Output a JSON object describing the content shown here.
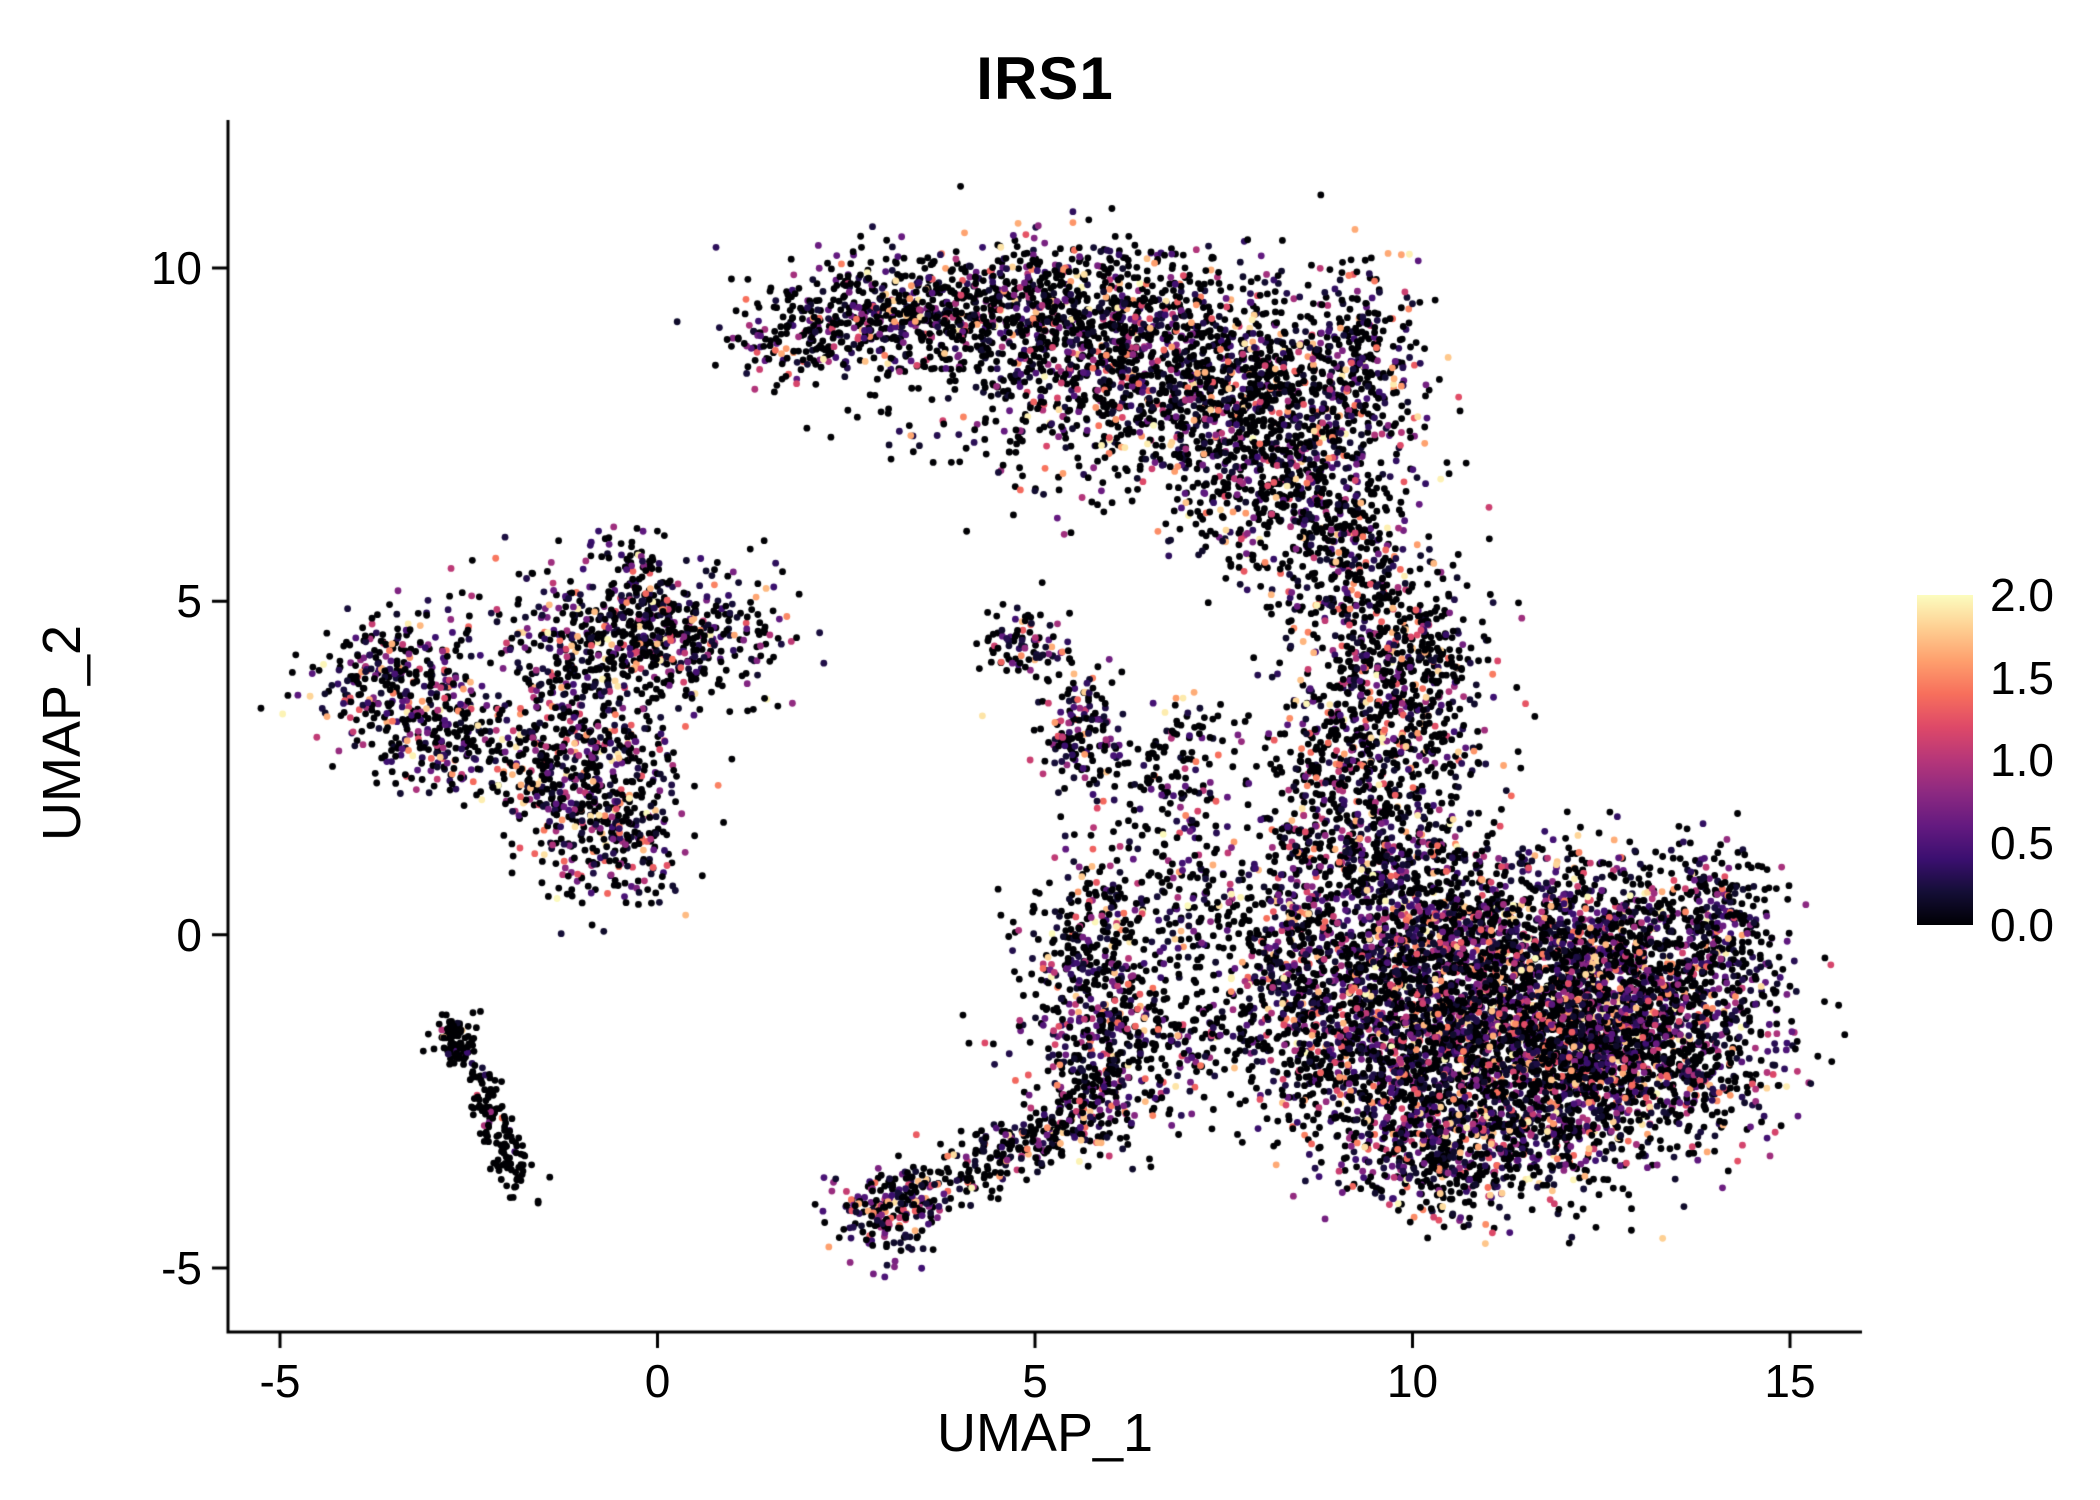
{
  "chart_data": {
    "type": "scatter",
    "title": "IRS1",
    "xlabel": "UMAP_1",
    "ylabel": "UMAP_2",
    "xlim": [
      -6.3,
      16.2
    ],
    "ylim": [
      -6.0,
      11.6
    ],
    "grid": false,
    "legend_position": "right",
    "x_ticks": {
      "values": [
        -5,
        0,
        5,
        10,
        15
      ],
      "labels": [
        "-5",
        "0",
        "5",
        "10",
        "15"
      ]
    },
    "y_ticks": {
      "values": [
        -5,
        0,
        5,
        10
      ],
      "labels": [
        "-5",
        "0",
        "5",
        "10"
      ]
    },
    "colorbar": {
      "min": 0,
      "max": 2,
      "tick_values": [
        0,
        0.5,
        1,
        1.5,
        2
      ],
      "tick_labels": [
        "0.0",
        "0.5",
        "1.0",
        "1.5",
        "2.0"
      ],
      "colormap": "magma",
      "stops": [
        "#000004",
        "#140E36",
        "#3B0F70",
        "#641A80",
        "#8C2981",
        "#B63679",
        "#DE4968",
        "#F76F5C",
        "#FE9F6D",
        "#FECF92",
        "#FCFDBF"
      ]
    },
    "point": {
      "radius": 3.4,
      "zero_color": "#000004"
    },
    "seed": 42,
    "expression": {
      "zero_value": 0,
      "nonzero_base": 0.15,
      "nonzero_range": 1.85,
      "power": 2.2
    },
    "clusters": [
      {
        "name": "top-crescent-left-tip",
        "kind": "gauss",
        "cx": 1.9,
        "cy": 8.95,
        "sx": 0.5,
        "sy": 0.4,
        "n": 150,
        "p0": 0.62
      },
      {
        "name": "top-crescent-1",
        "kind": "gauss",
        "cx": 3.3,
        "cy": 9.35,
        "sx": 0.85,
        "sy": 0.48,
        "n": 480,
        "p0": 0.62
      },
      {
        "name": "top-crescent-2",
        "kind": "gauss",
        "cx": 5.4,
        "cy": 9.2,
        "sx": 1.15,
        "sy": 0.62,
        "n": 850,
        "p0": 0.62
      },
      {
        "name": "top-crescent-3",
        "kind": "gauss",
        "cx": 7.2,
        "cy": 8.35,
        "sx": 1.0,
        "sy": 0.85,
        "n": 850,
        "p0": 0.6
      },
      {
        "name": "top-crescent-4",
        "kind": "gauss",
        "cx": 8.35,
        "cy": 7.0,
        "sx": 0.75,
        "sy": 0.85,
        "n": 650,
        "p0": 0.6
      },
      {
        "name": "top-crescent-right-edge",
        "kind": "gauss",
        "cx": 9.3,
        "cy": 8.6,
        "sx": 0.45,
        "sy": 0.75,
        "n": 280,
        "p0": 0.62
      },
      {
        "name": "top-crescent-inner",
        "kind": "gauss",
        "cx": 5.2,
        "cy": 7.7,
        "sx": 1.3,
        "sy": 0.75,
        "n": 160,
        "p0": 0.65
      },
      {
        "name": "neck-upper",
        "kind": "gauss",
        "cx": 9.0,
        "cy": 5.9,
        "sx": 0.45,
        "sy": 0.55,
        "n": 130,
        "p0": 0.6
      },
      {
        "name": "neck-mid",
        "kind": "gauss",
        "cx": 9.55,
        "cy": 4.6,
        "sx": 0.55,
        "sy": 0.75,
        "n": 330,
        "p0": 0.6
      },
      {
        "name": "neck-lower",
        "kind": "gauss",
        "cx": 9.3,
        "cy": 2.9,
        "sx": 0.65,
        "sy": 0.75,
        "n": 420,
        "p0": 0.58
      },
      {
        "name": "neck-right",
        "kind": "gauss",
        "cx": 10.2,
        "cy": 3.6,
        "sx": 0.5,
        "sy": 0.85,
        "n": 240,
        "p0": 0.6
      },
      {
        "name": "neck-bottom",
        "kind": "gauss",
        "cx": 8.9,
        "cy": 1.6,
        "sx": 0.5,
        "sy": 0.5,
        "n": 150,
        "p0": 0.58
      },
      {
        "name": "right-blob-core1",
        "kind": "gauss",
        "cx": 10.8,
        "cy": -0.6,
        "sx": 1.25,
        "sy": 0.9,
        "n": 1500,
        "p0": 0.5
      },
      {
        "name": "right-blob-core2",
        "kind": "gauss",
        "cx": 12.4,
        "cy": -0.55,
        "sx": 1.05,
        "sy": 0.85,
        "n": 1300,
        "p0": 0.5
      },
      {
        "name": "right-blob-lower",
        "kind": "gauss",
        "cx": 11.3,
        "cy": -2.2,
        "sx": 1.25,
        "sy": 0.8,
        "n": 1300,
        "p0": 0.5
      },
      {
        "name": "right-blob-lowright",
        "kind": "gauss",
        "cx": 13.0,
        "cy": -1.8,
        "sx": 0.85,
        "sy": 0.75,
        "n": 850,
        "p0": 0.5
      },
      {
        "name": "right-blob-left",
        "kind": "gauss",
        "cx": 9.4,
        "cy": -1.4,
        "sx": 0.8,
        "sy": 0.85,
        "n": 650,
        "p0": 0.52
      },
      {
        "name": "right-blob-east-tip",
        "kind": "gauss",
        "cx": 14.0,
        "cy": 0.2,
        "sx": 0.42,
        "sy": 0.5,
        "n": 230,
        "p0": 0.52
      },
      {
        "name": "right-blob-south-edge",
        "kind": "gauss",
        "cx": 10.6,
        "cy": -3.3,
        "sx": 0.9,
        "sy": 0.5,
        "n": 420,
        "p0": 0.52
      },
      {
        "name": "right-blob-west-arm",
        "kind": "gauss",
        "cx": 8.35,
        "cy": -0.2,
        "sx": 0.55,
        "sy": 0.8,
        "n": 330,
        "p0": 0.52
      },
      {
        "name": "right-blob-north-edge",
        "kind": "gauss",
        "cx": 9.8,
        "cy": 0.9,
        "sx": 0.75,
        "sy": 0.5,
        "n": 330,
        "p0": 0.52
      },
      {
        "name": "left-group-far",
        "kind": "gauss",
        "cx": -3.5,
        "cy": 3.9,
        "sx": 0.52,
        "sy": 0.5,
        "n": 270,
        "p0": 0.55
      },
      {
        "name": "left-group-far-low",
        "kind": "gauss",
        "cx": -2.85,
        "cy": 3.0,
        "sx": 0.5,
        "sy": 0.45,
        "n": 210,
        "p0": 0.55
      },
      {
        "name": "left-group-top",
        "kind": "gauss",
        "cx": -0.6,
        "cy": 4.45,
        "sx": 0.9,
        "sy": 0.55,
        "n": 430,
        "p0": 0.55
      },
      {
        "name": "left-group-top-right",
        "kind": "gauss",
        "cx": 0.4,
        "cy": 4.5,
        "sx": 0.75,
        "sy": 0.5,
        "n": 240,
        "p0": 0.55
      },
      {
        "name": "left-group-mid",
        "kind": "gauss",
        "cx": -0.9,
        "cy": 2.9,
        "sx": 0.6,
        "sy": 0.6,
        "n": 290,
        "p0": 0.55
      },
      {
        "name": "left-group-low",
        "kind": "gauss",
        "cx": -0.55,
        "cy": 1.5,
        "sx": 0.5,
        "sy": 0.6,
        "n": 290,
        "p0": 0.55
      },
      {
        "name": "left-group-bridge",
        "kind": "gauss",
        "cx": -1.6,
        "cy": 2.3,
        "sx": 0.5,
        "sy": 0.4,
        "n": 140,
        "p0": 0.6
      },
      {
        "name": "left-group-top-spur",
        "kind": "gauss",
        "cx": -0.25,
        "cy": 5.5,
        "sx": 0.3,
        "sy": 0.35,
        "n": 60,
        "p0": 0.6
      },
      {
        "name": "lower-left-arm",
        "kind": "line",
        "x0": -2.75,
        "y0": -1.35,
        "x1": -1.8,
        "y1": -3.8,
        "jitter": 0.14,
        "n": 170,
        "p0": 0.92
      },
      {
        "name": "lower-left-arm-head",
        "kind": "gauss",
        "cx": -2.7,
        "cy": -1.5,
        "sx": 0.12,
        "sy": 0.18,
        "n": 40,
        "p0": 0.9
      },
      {
        "name": "center-small-1",
        "kind": "gauss",
        "cx": 4.85,
        "cy": 4.35,
        "sx": 0.32,
        "sy": 0.28,
        "n": 90,
        "p0": 0.55
      },
      {
        "name": "center-small-2",
        "kind": "gauss",
        "cx": 5.6,
        "cy": 3.05,
        "sx": 0.28,
        "sy": 0.5,
        "n": 160,
        "p0": 0.5
      },
      {
        "name": "center-trail-1",
        "kind": "gauss",
        "cx": 6.7,
        "cy": 1.8,
        "sx": 0.45,
        "sy": 0.6,
        "n": 90,
        "p0": 0.6
      },
      {
        "name": "center-trail-2",
        "kind": "gauss",
        "cx": 7.2,
        "cy": 0.5,
        "sx": 0.45,
        "sy": 0.7,
        "n": 130,
        "p0": 0.6
      },
      {
        "name": "center-sparse",
        "kind": "gauss",
        "cx": 7.0,
        "cy": 2.95,
        "sx": 0.4,
        "sy": 0.35,
        "n": 60,
        "p0": 0.6
      },
      {
        "name": "bottom-arm-clump",
        "kind": "gauss",
        "cx": 3.1,
        "cy": -4.1,
        "sx": 0.33,
        "sy": 0.33,
        "n": 210,
        "p0": 0.5
      },
      {
        "name": "bottom-arm-line",
        "kind": "line",
        "x0": 3.5,
        "y0": -3.85,
        "x1": 6.0,
        "y1": -2.55,
        "jitter": 0.22,
        "n": 260,
        "p0": 0.6
      },
      {
        "name": "bottom-arm-merge",
        "kind": "gauss",
        "cx": 5.85,
        "cy": -2.0,
        "sx": 0.55,
        "sy": 0.65,
        "n": 300,
        "p0": 0.55
      },
      {
        "name": "bottom-arm-upper-clump",
        "kind": "gauss",
        "cx": 5.8,
        "cy": -0.35,
        "sx": 0.45,
        "sy": 0.75,
        "n": 360,
        "p0": 0.55
      },
      {
        "name": "bottom-arm-east-sparse",
        "kind": "gauss",
        "cx": 7.2,
        "cy": -1.6,
        "sx": 0.6,
        "sy": 0.5,
        "n": 150,
        "p0": 0.6
      }
    ]
  }
}
